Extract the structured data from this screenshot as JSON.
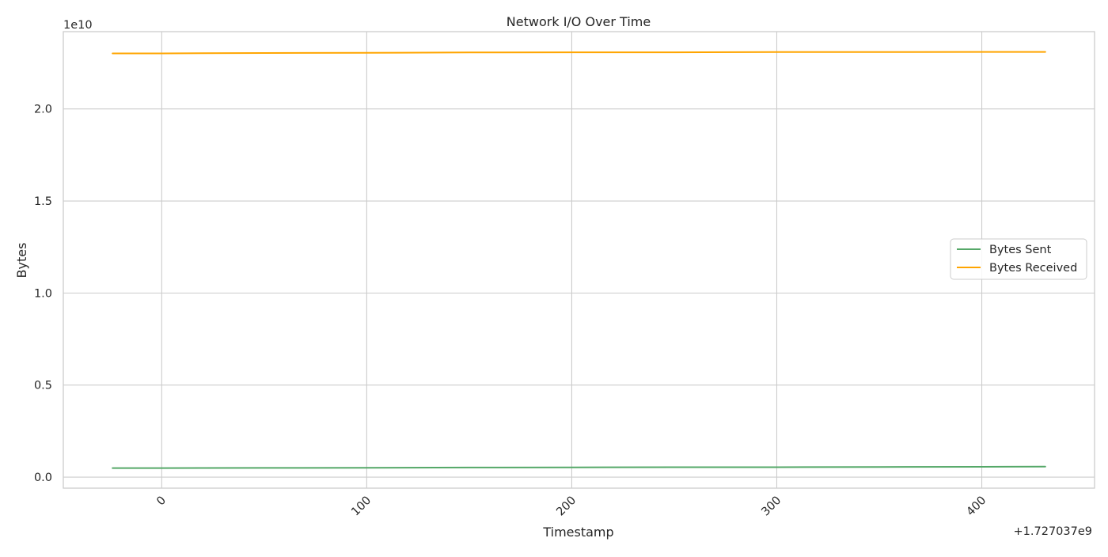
{
  "chart_data": {
    "type": "line",
    "title": "Network I/O Over Time",
    "xlabel": "Timestamp",
    "ylabel": "Bytes",
    "x_offset_label": "+1.727037e9",
    "y_scale_label": "1e10",
    "xlim": [
      -48,
      455
    ],
    "ylim": [
      -0.06,
      2.42
    ],
    "x_ticks": [
      0,
      100,
      200,
      300,
      400
    ],
    "x_tick_labels": [
      "0",
      "100",
      "200",
      "300",
      "400"
    ],
    "y_ticks": [
      0.0,
      0.5,
      1.0,
      1.5,
      2.0
    ],
    "y_tick_labels": [
      "0.0",
      "0.5",
      "1.0",
      "1.5",
      "2.0"
    ],
    "grid": true,
    "legend_position": "center-right",
    "series": [
      {
        "name": "Bytes Sent",
        "color": "#55a868",
        "x": [
          -24,
          0,
          50,
          100,
          150,
          200,
          250,
          300,
          350,
          400,
          431
        ],
        "y": [
          0.049,
          0.049,
          0.05,
          0.051,
          0.052,
          0.053,
          0.054,
          0.054,
          0.055,
          0.056,
          0.057
        ]
      },
      {
        "name": "Bytes Received",
        "color": "#ffa500",
        "x": [
          -24,
          0,
          50,
          100,
          150,
          200,
          250,
          300,
          350,
          400,
          431
        ],
        "y": [
          2.302,
          2.302,
          2.304,
          2.305,
          2.307,
          2.308,
          2.308,
          2.309,
          2.309,
          2.31,
          2.31
        ]
      }
    ]
  }
}
